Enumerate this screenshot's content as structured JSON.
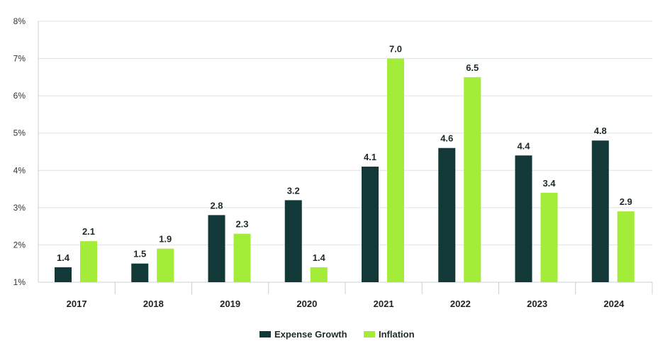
{
  "chart_data": {
    "type": "bar",
    "categories": [
      "2017",
      "2018",
      "2019",
      "2020",
      "2021",
      "2022",
      "2023",
      "2024"
    ],
    "series": [
      {
        "name": "Expense Growth",
        "color": "#123838",
        "values": [
          1.4,
          1.5,
          2.8,
          3.2,
          4.1,
          4.6,
          4.4,
          4.8
        ]
      },
      {
        "name": "Inflation",
        "color": "#a3ec37",
        "values": [
          2.1,
          1.9,
          2.3,
          1.4,
          7.0,
          6.5,
          3.4,
          2.9
        ]
      }
    ],
    "ylim": [
      1,
      8
    ],
    "yticks": [
      "1%",
      "2%",
      "3%",
      "4%",
      "5%",
      "6%",
      "7%",
      "8%"
    ],
    "grid": true,
    "legend_position": "bottom",
    "title": "",
    "xlabel": "",
    "ylabel": ""
  }
}
